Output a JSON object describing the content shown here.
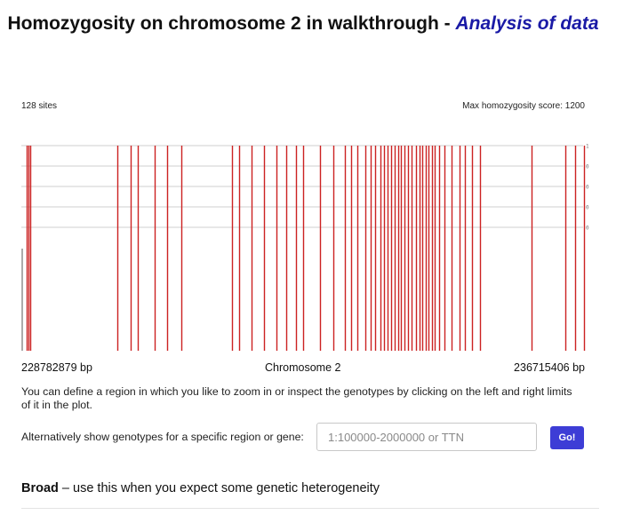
{
  "header": {
    "title": "Homozygosity on chromosome 2 in walkthrough - ",
    "link": "Analysis of data"
  },
  "plot": {
    "sites_label": "128 sites",
    "max_score_label": "Max homozygosity score: 1200",
    "left_bp": "228782879 bp",
    "center_label": "Chromosome 2",
    "right_bp": "236715406 bp",
    "marker_color": "#cc2222"
  },
  "chart_data": {
    "type": "bar",
    "x_range": [
      228782879,
      236715406
    ],
    "y_tick_labels": [
      "1.0",
      "0.9",
      "0.8",
      "0.7",
      "0.6"
    ],
    "marker_x_fraction": [
      0.01,
      0.013,
      0.016,
      0.17,
      0.194,
      0.206,
      0.237,
      0.258,
      0.284,
      0.374,
      0.387,
      0.408,
      0.43,
      0.452,
      0.47,
      0.487,
      0.5,
      0.53,
      0.554,
      0.574,
      0.585,
      0.597,
      0.61,
      0.62,
      0.628,
      0.637,
      0.643,
      0.65,
      0.656,
      0.662,
      0.668,
      0.674,
      0.68,
      0.686,
      0.693,
      0.7,
      0.707,
      0.712,
      0.717,
      0.722,
      0.728,
      0.733,
      0.742,
      0.75,
      0.763,
      0.778,
      0.787,
      0.8,
      0.814,
      0.905,
      0.965,
      0.982,
      0.998
    ]
  },
  "instructions": {
    "text": "You can define a region in which you like to zoom in or inspect the genotypes by clicking on the left and right limits of it in the plot."
  },
  "region_search": {
    "label": "Alternatively show genotypes for a specific region or gene:",
    "placeholder": "1:100000-2000000 or TTN",
    "button": "Go!"
  },
  "section": {
    "bold": "Broad",
    "rest": " – use this when you expect some genetic heterogeneity"
  }
}
